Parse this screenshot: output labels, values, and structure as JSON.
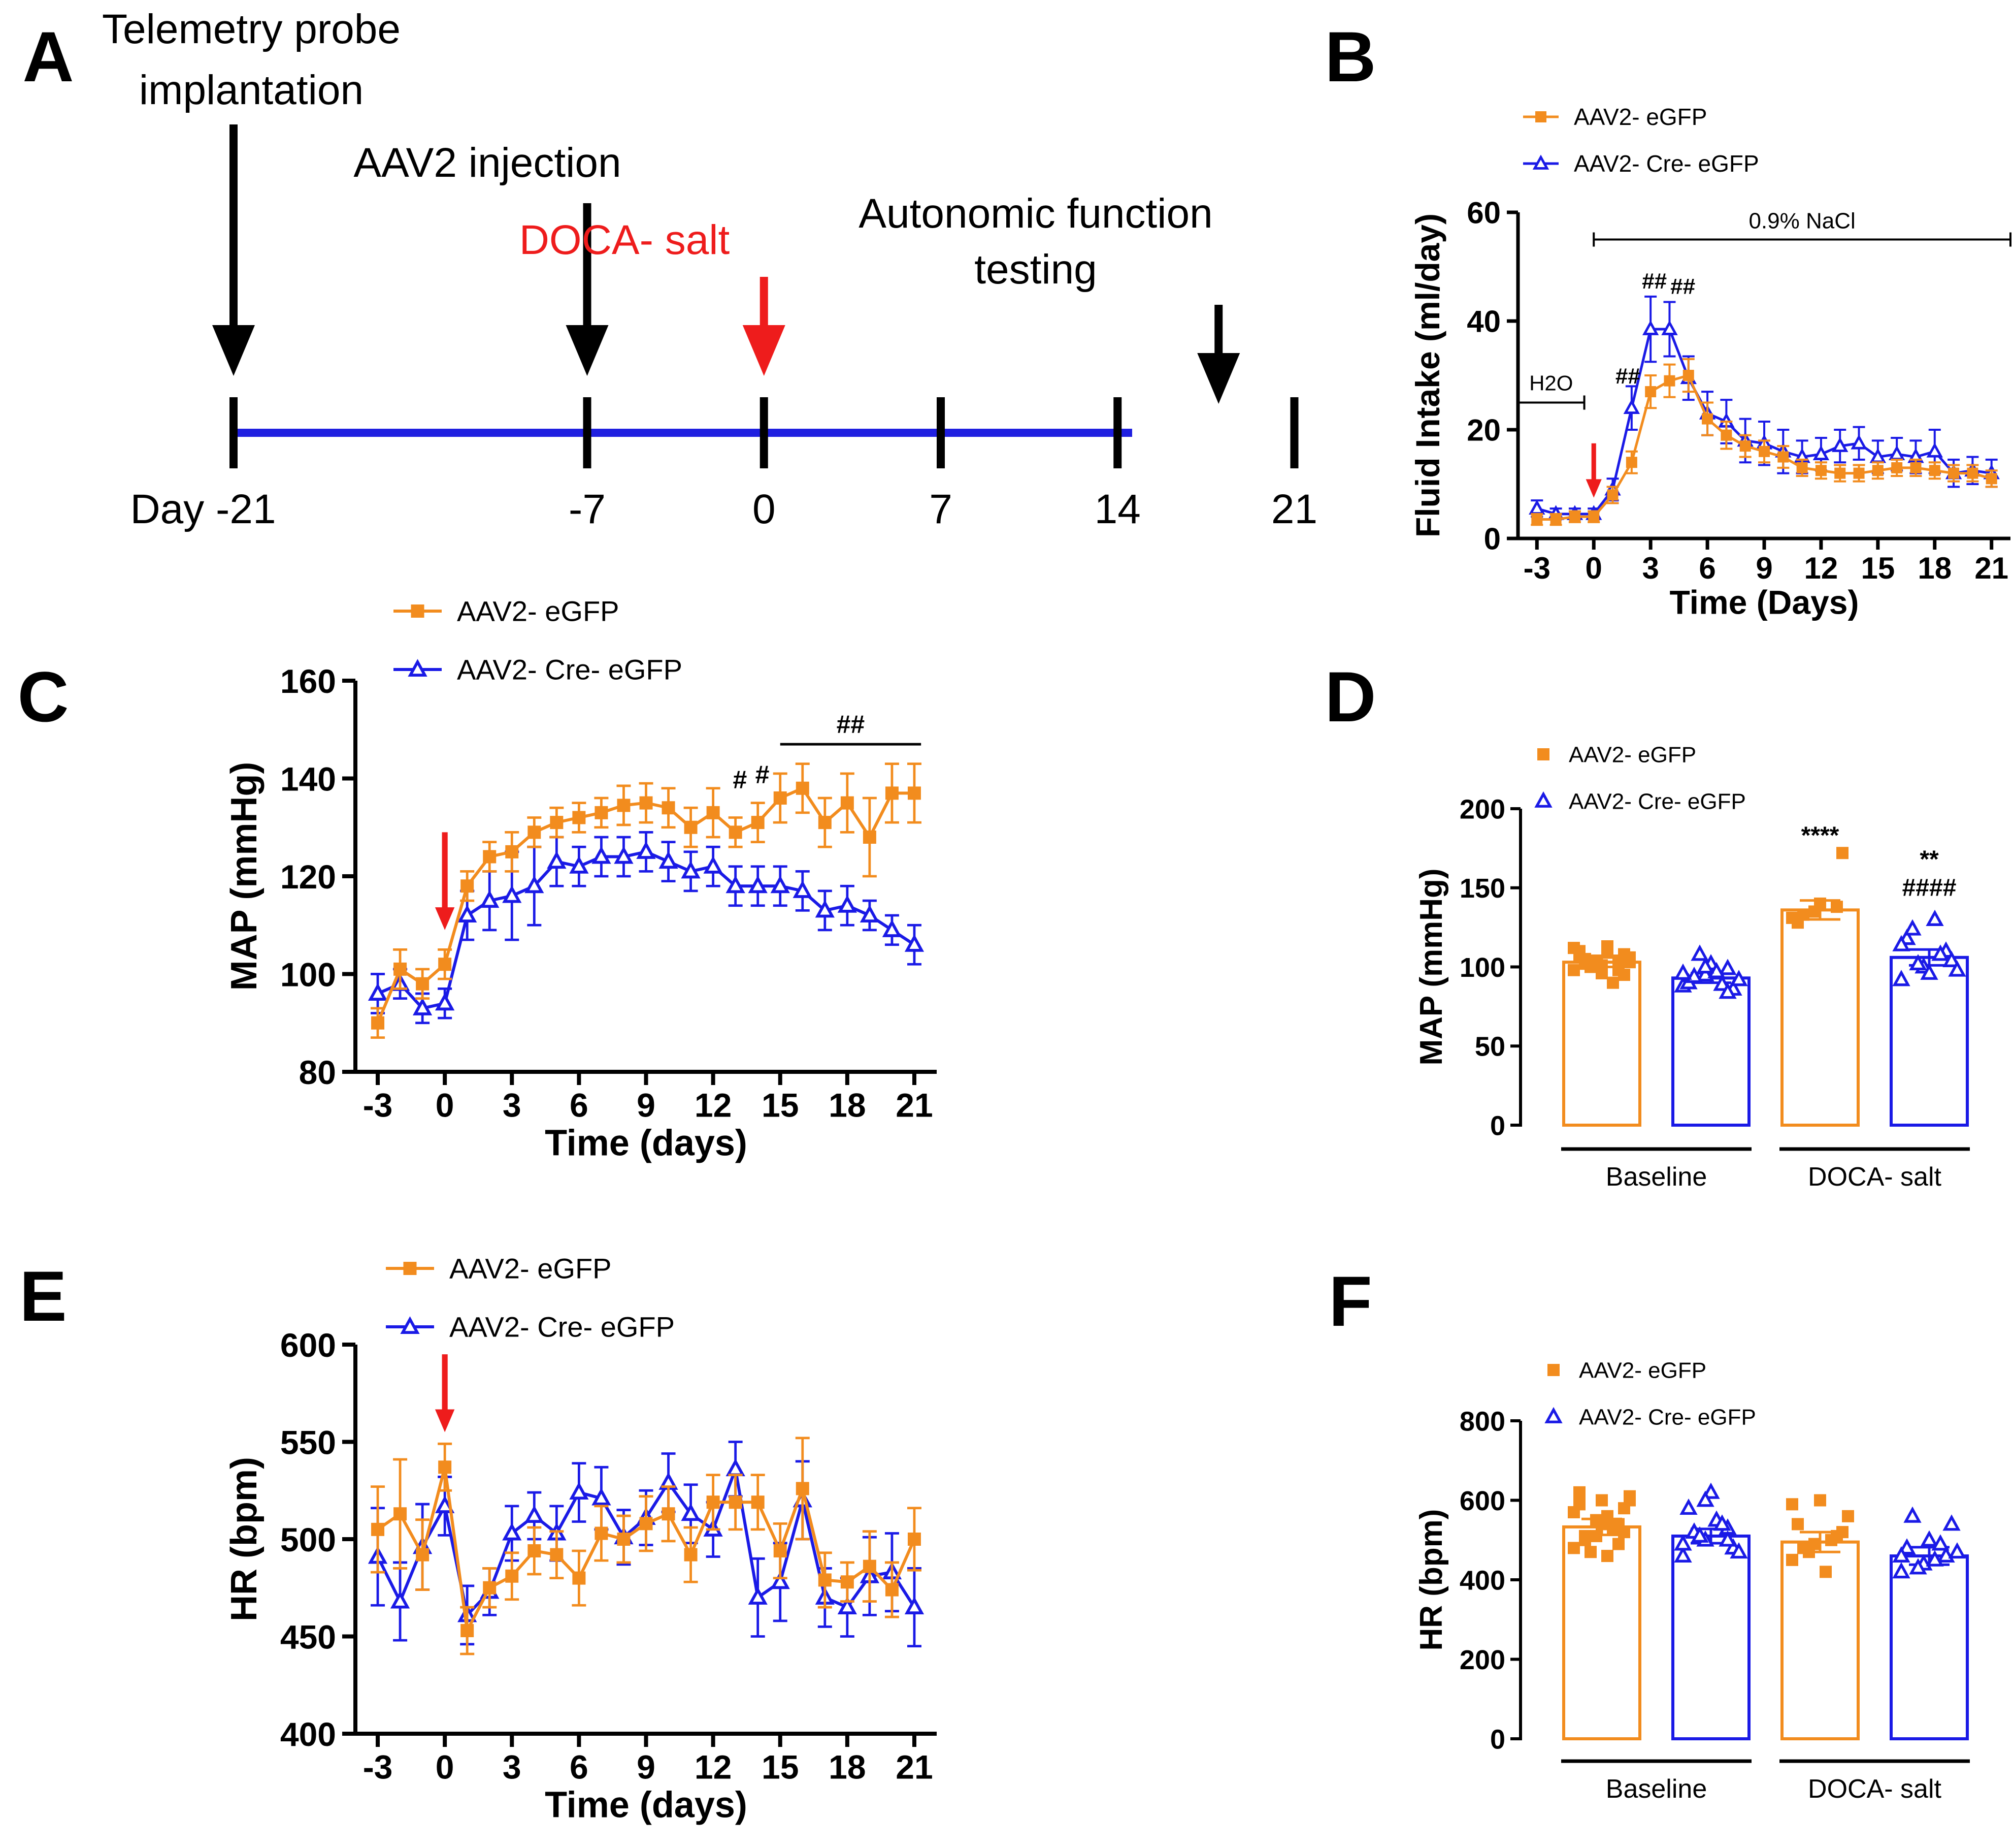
{
  "colors": {
    "orange": "#F28C1E",
    "blue": "#1A1AE6",
    "red": "#EE1C1C",
    "black": "#000000",
    "timeline": "#1F1FE0"
  },
  "panel_a": {
    "letter": "A",
    "events": [
      {
        "label": [
          "Telemetry probe",
          "implantation"
        ],
        "day": -21,
        "color": "black"
      },
      {
        "label": [
          "AAV2 injection"
        ],
        "day": -7,
        "color": "black"
      },
      {
        "label": [
          "DOCA- salt"
        ],
        "day": 0,
        "color": "red"
      },
      {
        "label": [
          "Autonomic function",
          "testing"
        ],
        "day": 18,
        "color": "black"
      }
    ],
    "ticks": [
      -21,
      -7,
      0,
      7,
      14,
      21
    ],
    "tick_labels": [
      "Day -21",
      "-7",
      "0",
      "7",
      "14",
      "21"
    ]
  },
  "chart_data": [
    {
      "panel": "B",
      "type": "line",
      "xlabel": "Time (Days)",
      "ylabel": "Fluid Intake (ml/day)",
      "xlim": [
        -4,
        22
      ],
      "ylim": [
        0,
        60
      ],
      "xticks": [
        -3,
        0,
        3,
        6,
        9,
        12,
        15,
        18,
        21
      ],
      "yticks": [
        0,
        20,
        40,
        60
      ],
      "x": [
        -3,
        -2,
        -1,
        0,
        1,
        2,
        3,
        4,
        5,
        6,
        7,
        8,
        9,
        10,
        11,
        12,
        13,
        14,
        15,
        16,
        17,
        18,
        19,
        20,
        21
      ],
      "series": [
        {
          "name": "AAV2- eGFP",
          "color": "orange",
          "marker": "square",
          "values": [
            3.5,
            3.5,
            4,
            4,
            8,
            14,
            27,
            29,
            30,
            22,
            19,
            17,
            16,
            15,
            13,
            12.5,
            12,
            12,
            12.5,
            13,
            13,
            12.5,
            12,
            12,
            11
          ],
          "errors": [
            1,
            1,
            1,
            1,
            1.5,
            2,
            3,
            3,
            3,
            3,
            2.5,
            2,
            2,
            2,
            1.5,
            1.5,
            1.5,
            1.5,
            1.5,
            1.5,
            1.5,
            1.5,
            1.5,
            1.5,
            1.5
          ]
        },
        {
          "name": "AAV2- Cre- eGFP",
          "color": "blue",
          "marker": "triangle",
          "values": [
            5.5,
            4.5,
            4.5,
            4.5,
            9,
            24,
            38.5,
            38.5,
            29.5,
            23,
            21.5,
            18,
            17.5,
            16,
            15,
            15.5,
            17,
            17.5,
            15,
            15.5,
            15,
            16,
            12,
            12.5,
            12
          ],
          "errors": [
            1.5,
            1,
            1,
            1,
            2,
            4,
            6,
            5,
            4,
            4,
            4,
            4,
            4,
            4,
            3,
            3,
            3,
            3,
            3,
            3,
            3,
            4,
            2.5,
            2.5,
            2.5
          ]
        }
      ],
      "annotations": [
        {
          "text": "0.9% NaCl",
          "x_from": 0,
          "x_to": 22,
          "y": 55
        },
        {
          "text": "H2O",
          "x_from": -4,
          "x_to": -0.5,
          "y": 25
        },
        {
          "text": "##",
          "x": 1.8,
          "y": 28.5
        },
        {
          "text": "##",
          "x": 3.2,
          "y": 46
        },
        {
          "text": "##",
          "x": 4.7,
          "y": 45
        }
      ],
      "arrow_day": 0,
      "legend": "top-left"
    },
    {
      "panel": "C",
      "type": "line",
      "xlabel": "Time (days)",
      "ylabel": "MAP (mmHg)",
      "xlim": [
        -4,
        22
      ],
      "ylim": [
        80,
        160
      ],
      "xticks": [
        -3,
        0,
        3,
        6,
        9,
        12,
        15,
        18,
        21
      ],
      "yticks": [
        80,
        100,
        120,
        140,
        160
      ],
      "x": [
        -3,
        -2,
        -1,
        0,
        1,
        2,
        3,
        4,
        5,
        6,
        7,
        8,
        9,
        10,
        11,
        12,
        13,
        14,
        15,
        16,
        17,
        18,
        19,
        20,
        21
      ],
      "series": [
        {
          "name": "AAV2- eGFP",
          "color": "orange",
          "marker": "square",
          "values": [
            90,
            101,
            98,
            102,
            118,
            124,
            125,
            129,
            131,
            132,
            133,
            134.5,
            135,
            134,
            130,
            133,
            129,
            131,
            136,
            138,
            131,
            135,
            128,
            137,
            137
          ],
          "errors": [
            3,
            4,
            3,
            3,
            3,
            3,
            4,
            3,
            3,
            3,
            3,
            4,
            4,
            4,
            4,
            5,
            3,
            4,
            5,
            5,
            5,
            6,
            8,
            6,
            6
          ]
        },
        {
          "name": "AAV2- Cre- eGFP",
          "color": "blue",
          "marker": "triangle",
          "values": [
            96,
            98,
            93,
            94,
            112,
            115,
            116,
            118,
            123,
            122,
            124,
            124,
            125,
            123,
            121,
            122,
            118,
            118,
            118,
            117,
            113,
            114,
            112,
            109,
            106
          ],
          "errors": [
            4,
            3,
            3,
            3,
            5,
            6,
            9,
            8,
            5,
            4,
            4,
            4,
            4,
            4,
            4,
            4,
            4,
            4,
            4,
            4,
            4,
            4,
            3,
            3,
            4
          ]
        }
      ],
      "annotations": [
        {
          "text": "##",
          "x_from": 15,
          "x_to": 21.3,
          "y": 147
        },
        {
          "text": "#",
          "x": 13.2,
          "y": 138
        },
        {
          "text": "#",
          "x": 14.2,
          "y": 139
        }
      ],
      "arrow_day": 0,
      "legend": "top-left"
    },
    {
      "panel": "D",
      "type": "bar",
      "ylabel": "MAP (mmHg)",
      "ylim": [
        0,
        200
      ],
      "yticks": [
        0,
        50,
        100,
        150,
        200
      ],
      "groups": [
        "Baseline",
        "DOCA- salt"
      ],
      "series": [
        {
          "name": "AAV2- eGFP",
          "color": "orange",
          "marker": "square",
          "values": [
            103,
            136
          ],
          "errors": [
            3,
            6
          ],
          "points": [
            [
              98,
              100,
              104,
              110,
              96,
              108,
              102,
              113,
              106,
              100,
              90,
              112,
              104,
              98,
              107,
              101,
              95,
              105,
              109,
              103
            ],
            [
              131,
              135,
              138,
              128,
              140,
              172,
              133
            ]
          ]
        },
        {
          "name": "AAV2- Cre- eGFP",
          "color": "blue",
          "marker": "triangle",
          "values": [
            93,
            106
          ],
          "errors": [
            3,
            5
          ],
          "points": [
            [
              88,
              95,
              99,
              90,
              102,
              86,
              94,
              97,
              92,
              108,
              89,
              96,
              100,
              84
            ],
            [
              92,
              100,
              110,
              118,
              96,
              104,
              124,
              130,
              98,
              102,
              108,
              114
            ]
          ]
        }
      ],
      "annotations": [
        {
          "text": "****",
          "group": 1,
          "series": 0,
          "y": 178
        },
        {
          "text": "**",
          "group": 1,
          "series": 1,
          "y": 163
        },
        {
          "text": "####",
          "group": 1,
          "series": 1,
          "y": 145
        }
      ],
      "legend": "top-left"
    },
    {
      "panel": "E",
      "type": "line",
      "xlabel": "Time (days)",
      "ylabel": "HR (bpm)",
      "xlim": [
        -4,
        22
      ],
      "ylim": [
        400,
        600
      ],
      "xticks": [
        -3,
        0,
        3,
        6,
        9,
        12,
        15,
        18,
        21
      ],
      "yticks": [
        400,
        450,
        500,
        550,
        600
      ],
      "x": [
        -3,
        -2,
        -1,
        0,
        1,
        2,
        3,
        4,
        5,
        6,
        7,
        8,
        9,
        10,
        11,
        12,
        13,
        14,
        15,
        16,
        17,
        18,
        19,
        20,
        21
      ],
      "series": [
        {
          "name": "AAV2- eGFP",
          "color": "orange",
          "marker": "square",
          "values": [
            505,
            513,
            492,
            537,
            453,
            475,
            481,
            494,
            492,
            480,
            503,
            500,
            508,
            513,
            492,
            519,
            519,
            519,
            494,
            526,
            479,
            478,
            486,
            474,
            500
          ],
          "errors": [
            22,
            28,
            18,
            12,
            12,
            10,
            12,
            12,
            12,
            14,
            14,
            12,
            14,
            14,
            14,
            14,
            14,
            14,
            14,
            26,
            14,
            10,
            18,
            14,
            16
          ]
        },
        {
          "name": "AAV2- Cre- eGFP",
          "color": "blue",
          "marker": "triangle",
          "values": [
            491,
            468,
            496,
            517,
            461,
            473,
            503,
            512,
            503,
            524,
            521,
            501,
            511,
            529,
            513,
            505,
            536,
            470,
            478,
            520,
            470,
            465,
            481,
            483,
            465
          ],
          "errors": [
            25,
            20,
            22,
            15,
            15,
            12,
            14,
            12,
            14,
            15,
            16,
            14,
            14,
            15,
            15,
            14,
            14,
            20,
            20,
            20,
            15,
            15,
            20,
            20,
            20
          ]
        }
      ],
      "arrow_day": 0,
      "legend": "top-left"
    },
    {
      "panel": "F",
      "type": "bar",
      "ylabel": "HR (bpm)",
      "ylim": [
        0,
        800
      ],
      "yticks": [
        0,
        200,
        400,
        600,
        800
      ],
      "groups": [
        "Baseline",
        "DOCA- salt"
      ],
      "series": [
        {
          "name": "AAV2- eGFP",
          "color": "orange",
          "marker": "square",
          "values": [
            533,
            495
          ],
          "errors": [
            20,
            25
          ],
          "points": [
            [
              480,
              510,
              540,
              590,
              600,
              520,
              500,
              560,
              610,
              470,
              530,
              570,
              550,
              490,
              620,
              540,
              580,
              510,
              460,
              600
            ],
            [
              450,
              490,
              510,
              540,
              600,
              520,
              480,
              420,
              560,
              470,
              500,
              590
            ]
          ]
        },
        {
          "name": "AAV2- Cre- eGFP",
          "color": "blue",
          "marker": "triangle",
          "values": [
            510,
            460
          ],
          "errors": [
            18,
            22
          ],
          "points": [
            [
              460,
              500,
              530,
              580,
              620,
              480,
              520,
              550,
              470,
              510,
              540,
              490,
              600,
              500
            ],
            [
              420,
              440,
              460,
              480,
              500,
              540,
              560,
              450,
              470,
              430,
              490,
              460
            ]
          ]
        }
      ],
      "legend": "top-left"
    }
  ]
}
